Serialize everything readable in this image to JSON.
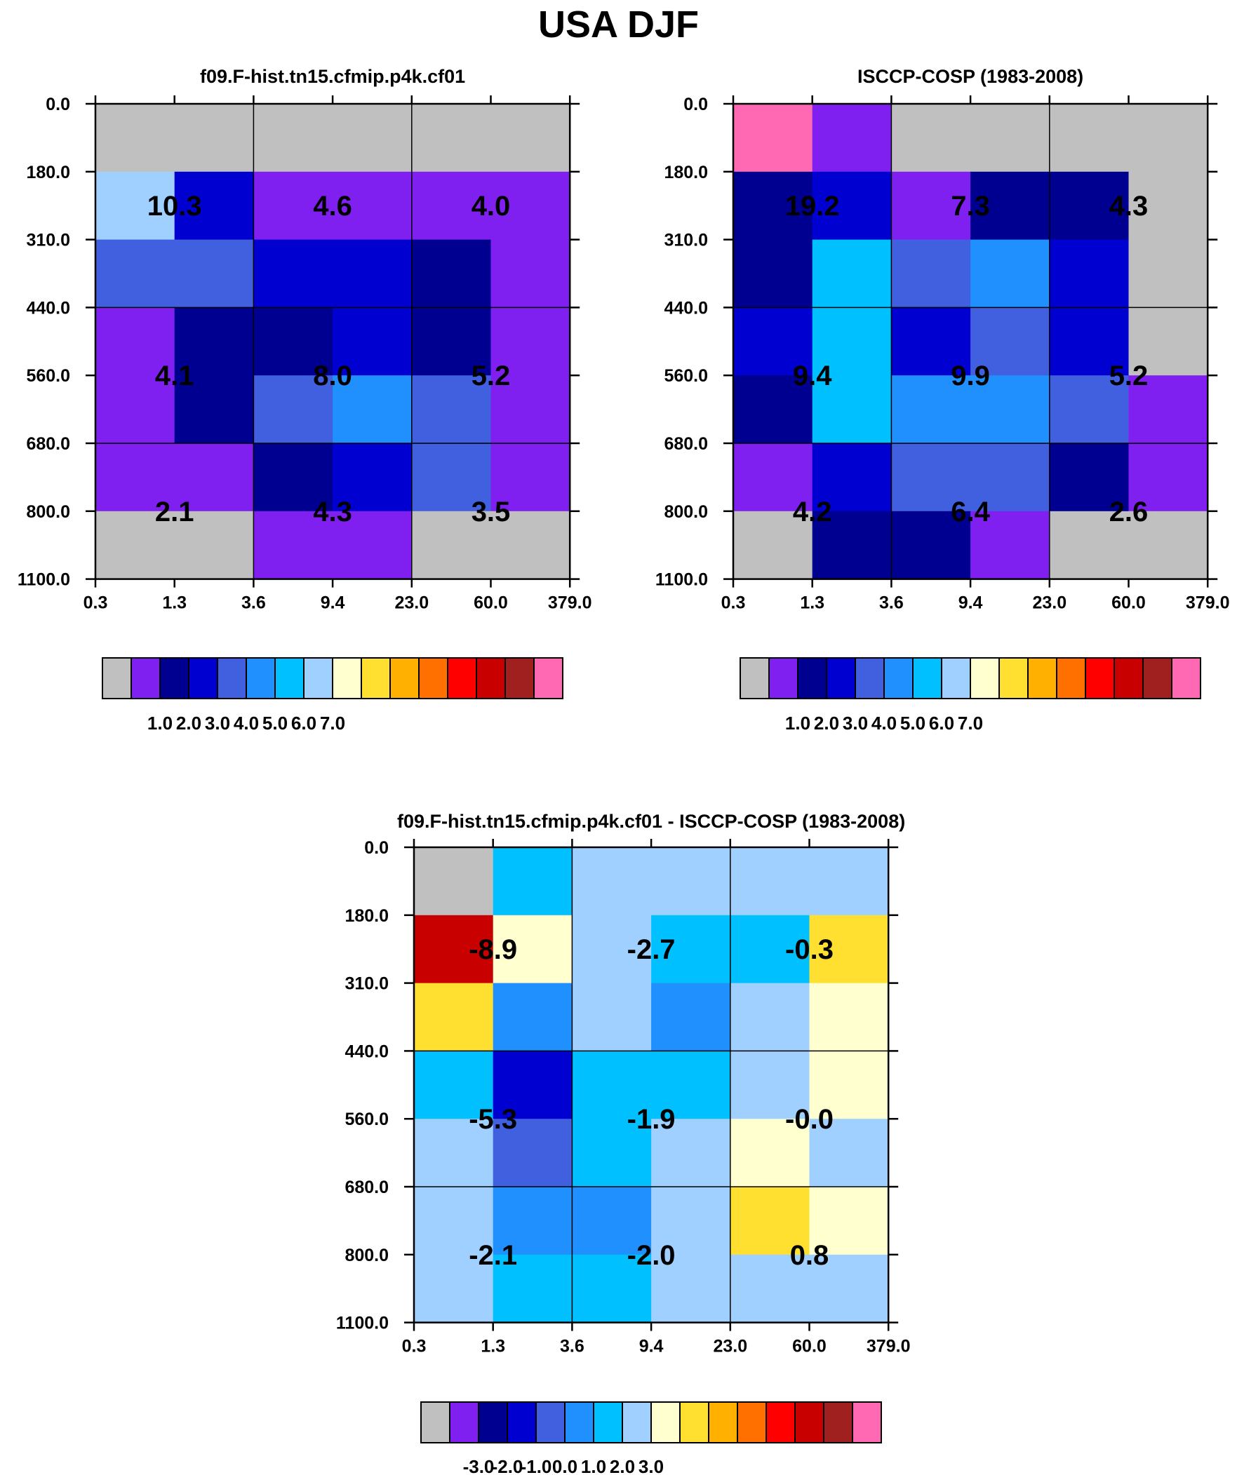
{
  "title": "USA DJF",
  "x_ticks": [
    "0.3",
    "1.3",
    "3.6",
    "9.4",
    "23.0",
    "60.0",
    "379.0"
  ],
  "y_ticks": [
    "0.0",
    "180.0",
    "310.0",
    "440.0",
    "560.0",
    "680.0",
    "800.0",
    "1100.0"
  ],
  "palette": [
    "#c0c0c0",
    "#8020f0",
    "#000090",
    "#0000d0",
    "#4060e0",
    "#2090ff",
    "#00c0ff",
    "#a0d0ff",
    "#ffffd0",
    "#ffe030",
    "#ffb000",
    "#ff7000",
    "#ff0000",
    "#c80000",
    "#a02020",
    "#ff69b4"
  ],
  "chart_data": [
    {
      "type": "heatmap",
      "title": "f09.F-hist.tn15.cfmip.p4k.cf01",
      "x_bins": [
        0.3,
        1.3,
        3.6,
        9.4,
        23.0,
        60.0,
        379.0
      ],
      "y_bins": [
        0.0,
        180.0,
        310.0,
        440.0,
        560.0,
        680.0,
        800.0,
        1100.0
      ],
      "cell_color_index": [
        [
          0,
          0,
          0,
          0,
          0,
          0
        ],
        [
          7,
          3,
          1,
          1,
          1,
          1
        ],
        [
          4,
          4,
          3,
          3,
          2,
          1
        ],
        [
          1,
          2,
          2,
          3,
          2,
          1
        ],
        [
          1,
          2,
          4,
          5,
          4,
          1
        ],
        [
          1,
          1,
          2,
          3,
          4,
          1
        ],
        [
          0,
          0,
          1,
          1,
          0,
          0
        ]
      ],
      "group_labels": [
        [
          "10.3",
          "4.6",
          "4.0"
        ],
        [
          "4.1",
          "8.0",
          "5.2"
        ],
        [
          "2.1",
          "4.3",
          "3.5"
        ]
      ],
      "colorbar": {
        "labels": [
          "1.0",
          "2.0",
          "3.0",
          "4.0",
          "5.0",
          "6.0",
          "7.0"
        ]
      }
    },
    {
      "type": "heatmap",
      "title": "ISCCP-COSP (1983-2008)",
      "x_bins": [
        0.3,
        1.3,
        3.6,
        9.4,
        23.0,
        60.0,
        379.0
      ],
      "y_bins": [
        0.0,
        180.0,
        310.0,
        440.0,
        560.0,
        680.0,
        800.0,
        1100.0
      ],
      "cell_color_index": [
        [
          15,
          1,
          0,
          0,
          0,
          0
        ],
        [
          2,
          3,
          1,
          2,
          2,
          0
        ],
        [
          2,
          6,
          4,
          5,
          3,
          0
        ],
        [
          3,
          6,
          3,
          4,
          3,
          0
        ],
        [
          2,
          6,
          5,
          5,
          4,
          1
        ],
        [
          1,
          3,
          4,
          4,
          2,
          1
        ],
        [
          0,
          2,
          2,
          1,
          0,
          0
        ]
      ],
      "group_labels": [
        [
          "19.2",
          "7.3",
          "4.3"
        ],
        [
          "9.4",
          "9.9",
          "5.2"
        ],
        [
          "4.2",
          "6.4",
          "2.6"
        ]
      ],
      "colorbar": {
        "labels": [
          "1.0",
          "2.0",
          "3.0",
          "4.0",
          "5.0",
          "6.0",
          "7.0"
        ]
      }
    },
    {
      "type": "heatmap",
      "title": "f09.F-hist.tn15.cfmip.p4k.cf01 - ISCCP-COSP (1983-2008)",
      "x_bins": [
        0.3,
        1.3,
        3.6,
        9.4,
        23.0,
        60.0,
        379.0
      ],
      "y_bins": [
        0.0,
        180.0,
        310.0,
        440.0,
        560.0,
        680.0,
        800.0,
        1100.0
      ],
      "cell_color_index": [
        [
          0,
          6,
          7,
          7,
          7,
          7
        ],
        [
          13,
          8,
          7,
          6,
          6,
          9
        ],
        [
          9,
          5,
          7,
          5,
          7,
          8
        ],
        [
          6,
          3,
          6,
          6,
          7,
          8
        ],
        [
          7,
          4,
          6,
          7,
          8,
          7
        ],
        [
          7,
          5,
          5,
          7,
          9,
          8
        ],
        [
          7,
          6,
          6,
          7,
          7,
          7
        ]
      ],
      "group_labels": [
        [
          "-8.9",
          "-2.7",
          "-0.3"
        ],
        [
          "-5.3",
          "-1.9",
          "-0.0"
        ],
        [
          "-2.1",
          "-2.0",
          "0.8"
        ]
      ],
      "colorbar": {
        "labels": [
          "-3.0",
          "-2.0",
          "-1.0",
          "0.0",
          "1.0",
          "2.0",
          "3.0"
        ]
      }
    }
  ]
}
